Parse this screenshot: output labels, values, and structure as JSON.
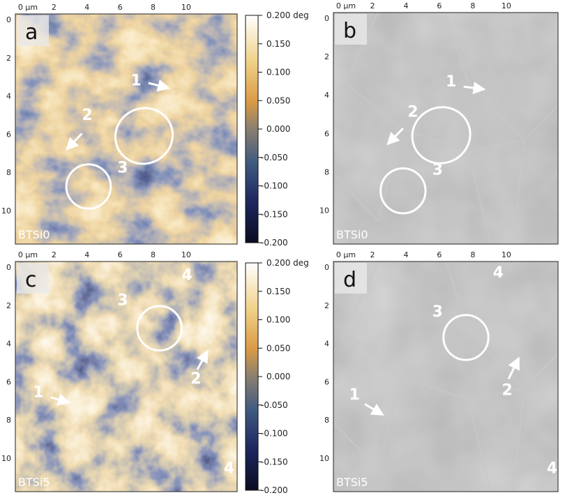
{
  "figure": {
    "axis_unit": "µm",
    "x_ticks": [
      "0 µm",
      "2",
      "4",
      "6",
      "8",
      "10"
    ],
    "y_ticks": [
      "0",
      "2",
      "4",
      "6",
      "8",
      "10"
    ],
    "colorbar": {
      "ticks": [
        "0.200 deg",
        "0.150",
        "0.100",
        "0.050",
        "0.000",
        "-0.050",
        "-0.100",
        "-0.150",
        "-0.200"
      ],
      "colors": [
        "#ffffff",
        "#f1d28a",
        "#d99a45",
        "#8a7f70",
        "#3e5a80",
        "#1e2660",
        "#0a0c20"
      ]
    },
    "panels": [
      {
        "letter": "a",
        "sample": "BTSi0",
        "type": "phase",
        "annotations": [
          "1",
          "2",
          "3"
        ]
      },
      {
        "letter": "b",
        "sample": "BTSi0",
        "type": "sem",
        "annotations": [
          "1",
          "2",
          "3"
        ]
      },
      {
        "letter": "c",
        "sample": "BTSi5",
        "type": "phase",
        "annotations": [
          "1",
          "2",
          "3",
          "4",
          "4"
        ]
      },
      {
        "letter": "d",
        "sample": "BTSi5",
        "type": "sem",
        "annotations": [
          "1",
          "2",
          "3",
          "4",
          "4"
        ]
      }
    ]
  }
}
